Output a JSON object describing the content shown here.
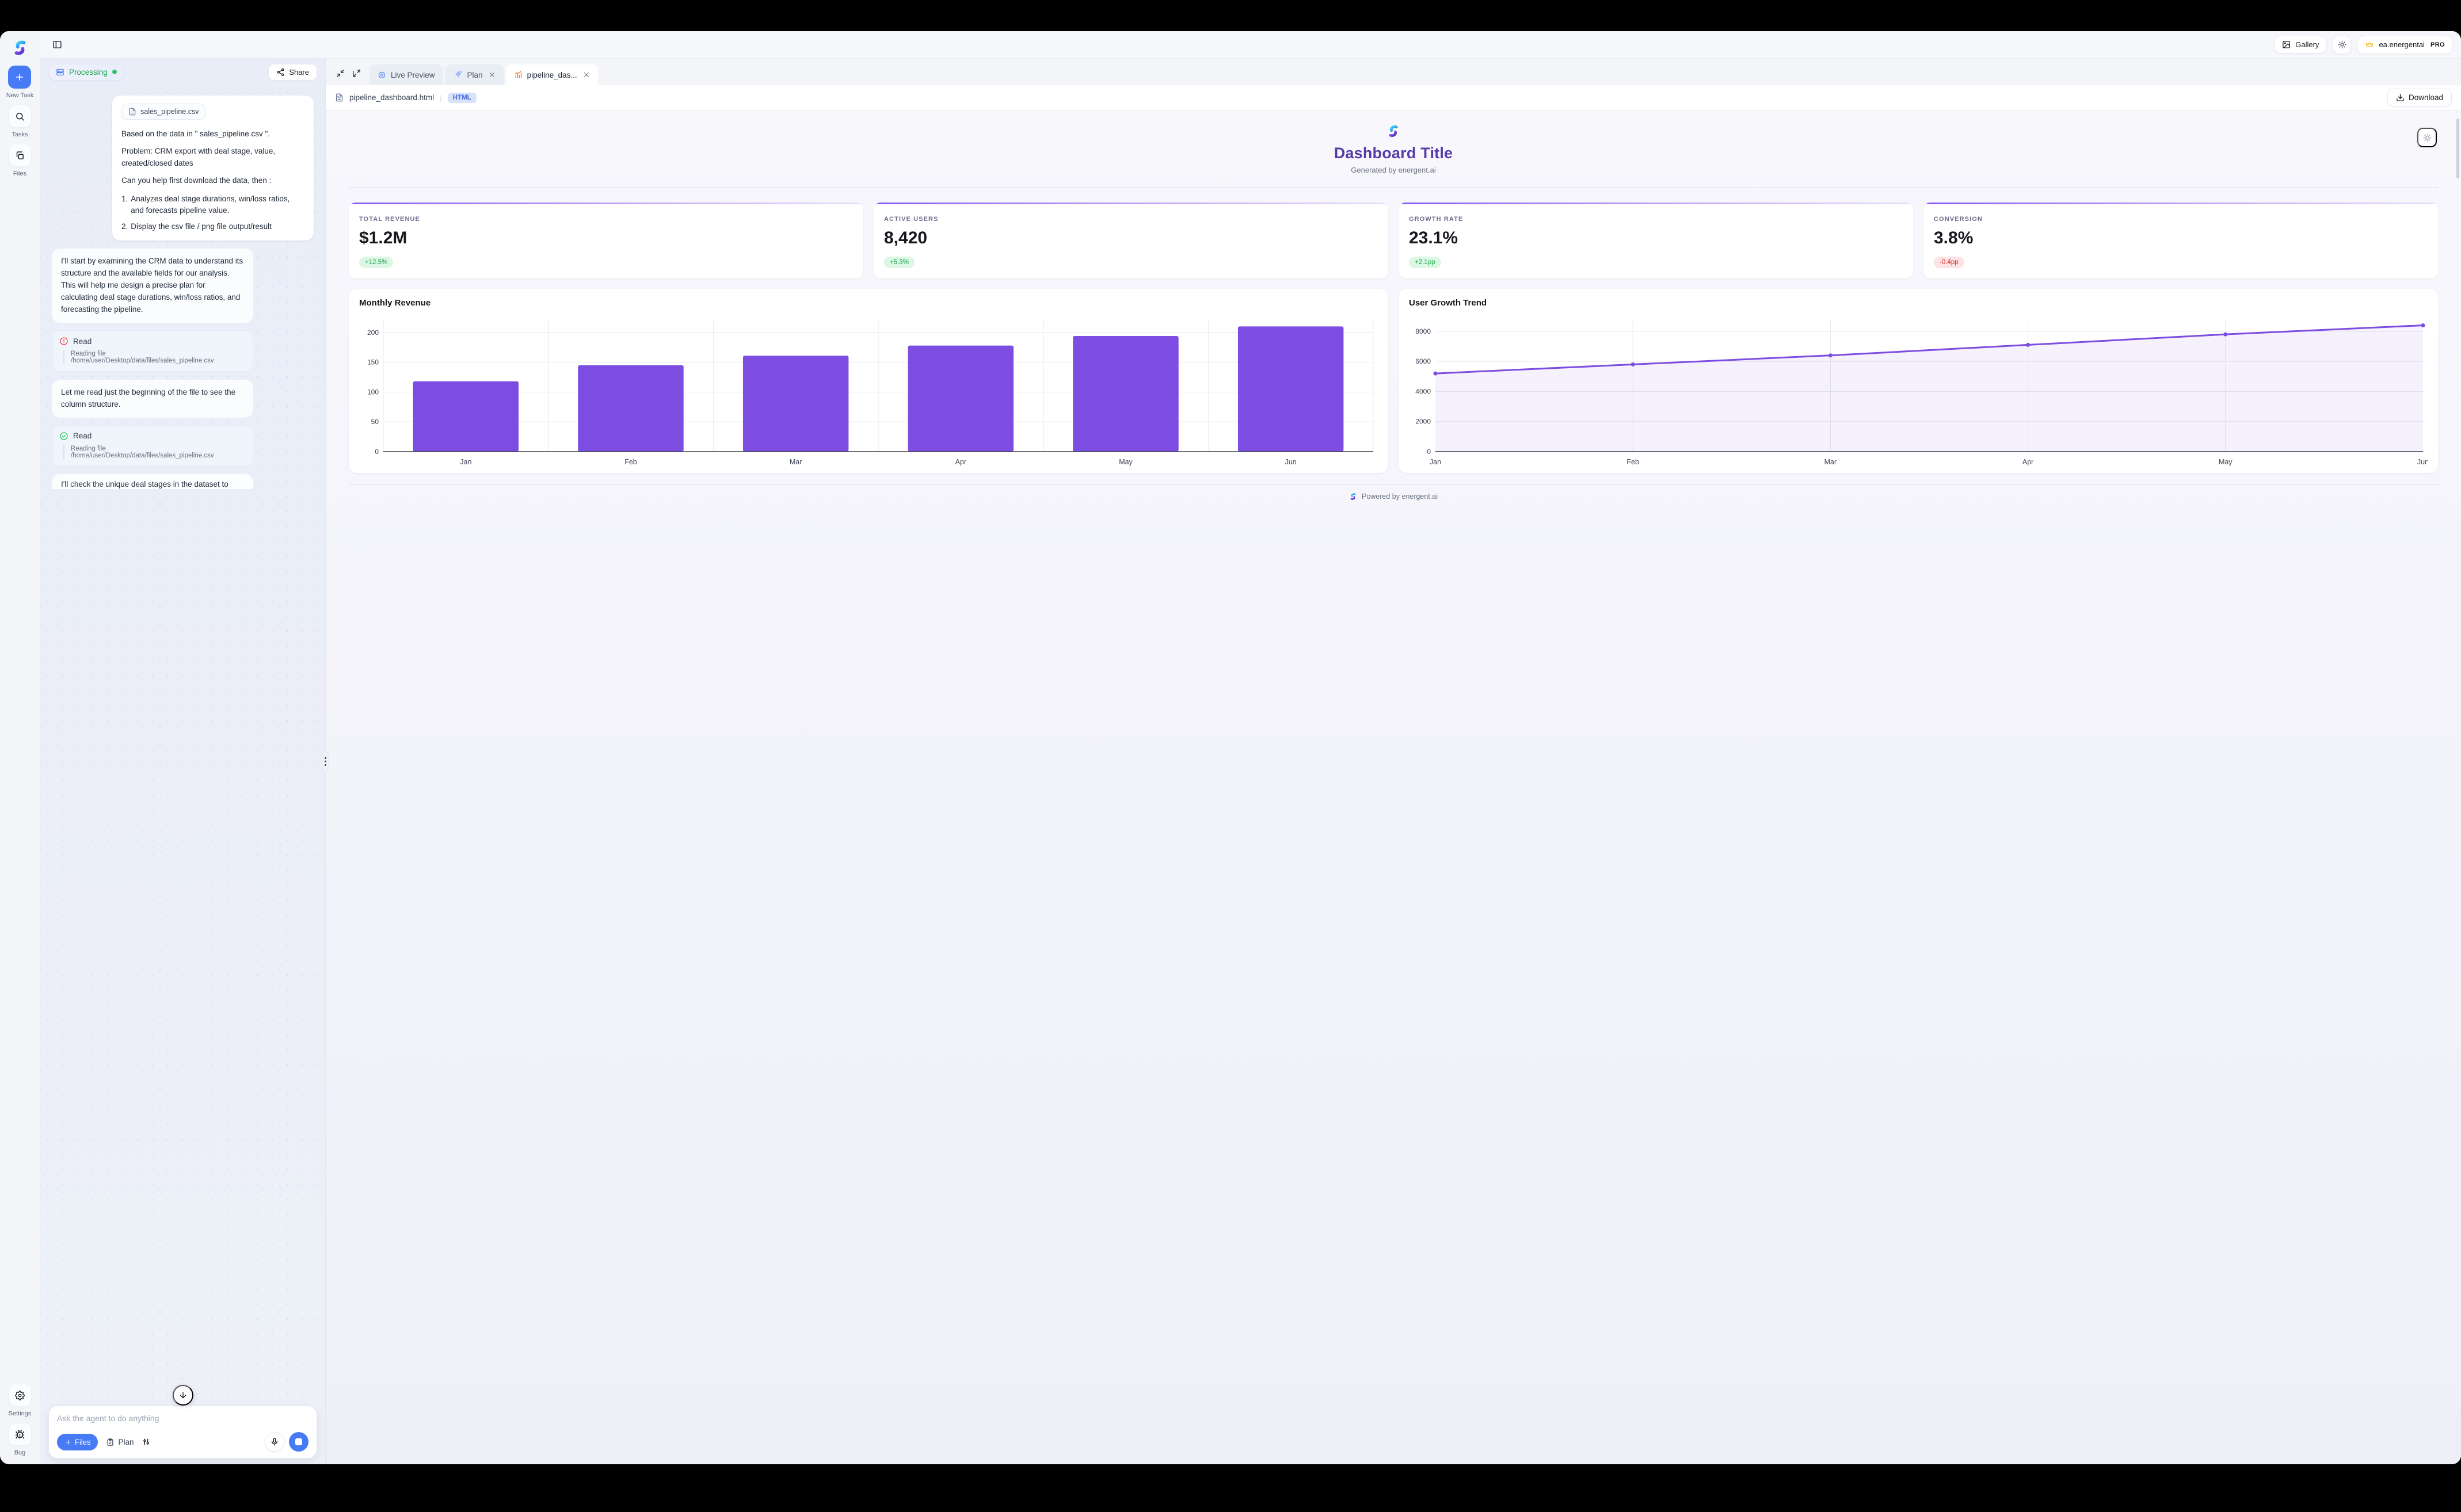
{
  "header": {
    "gallery_label": "Gallery",
    "account": "ea.energentai",
    "plan_badge": "PRO"
  },
  "sidebar": {
    "items": [
      {
        "label": "New Task"
      },
      {
        "label": "Tasks"
      },
      {
        "label": "Files"
      }
    ],
    "bottom": [
      {
        "label": "Settings"
      },
      {
        "label": "Bug"
      }
    ]
  },
  "chat": {
    "status_label": "Processing",
    "share_label": "Share",
    "user_message": {
      "file_chip": "sales_pipeline.csv",
      "p1": "Based on the data in \" sales_pipeline.csv \".",
      "p2": "Problem: CRM export with deal stage, value, created/closed dates",
      "p3": "Can you help first download the data, then :",
      "list": [
        {
          "num": "1.",
          "text": "Analyzes deal stage durations, win/loss ratios, and forecasts pipeline value."
        },
        {
          "num": "2.",
          "text": "Display the csv file / png file output/result"
        }
      ]
    },
    "assistant_message_1": "I'll start by examining the CRM data to understand its structure and the available fields for our analysis. This will help me design a precise plan for calculating deal stage durations, win/loss ratios, and forecasting the pipeline.",
    "tool_1": {
      "name": "Read",
      "status": "error",
      "detail": "Reading file /home/user/Desktop/data/files/sales_pipeline.csv"
    },
    "assistant_message_2": "Let me read just the beginning of the file to see the column structure.",
    "tool_2": {
      "name": "Read",
      "status": "success",
      "detail": "Reading file /home/user/Desktop/data/files/sales_pipeline.csv"
    },
    "assistant_message_3_clipped": "I'll check the unique deal stages in the dataset to",
    "composer": {
      "placeholder": "Ask the agent to do anything",
      "files_label": "Files",
      "plan_label": "Plan"
    }
  },
  "preview": {
    "tabs": [
      {
        "label": "Live Preview"
      },
      {
        "label": "Plan"
      },
      {
        "label": "pipeline_das..."
      }
    ],
    "file_bar": {
      "filename": "pipeline_dashboard.html",
      "badge": "HTML",
      "download_label": "Download"
    },
    "dashboard": {
      "title": "Dashboard Title",
      "subtitle": "Generated by energent.ai",
      "stats": [
        {
          "label": "TOTAL REVENUE",
          "value": "$1.2M",
          "delta": "+12.5%",
          "direction": "up"
        },
        {
          "label": "ACTIVE USERS",
          "value": "8,420",
          "delta": "+5.3%",
          "direction": "up"
        },
        {
          "label": "GROWTH RATE",
          "value": "23.1%",
          "delta": "+2.1pp",
          "direction": "up"
        },
        {
          "label": "CONVERSION",
          "value": "3.8%",
          "delta": "-0.4pp",
          "direction": "down"
        }
      ],
      "footer": "Powered by energent.ai"
    }
  },
  "chart_data": [
    {
      "type": "bar",
      "title": "Monthly Revenue",
      "categories": [
        "Jan",
        "Feb",
        "Mar",
        "Apr",
        "May",
        "Jun"
      ],
      "values": [
        118,
        145,
        161,
        178,
        194,
        210
      ],
      "yticks": [
        0,
        50,
        100,
        150,
        200
      ],
      "ylim": [
        0,
        222
      ],
      "grid": true,
      "color": "#7c4de0"
    },
    {
      "type": "area",
      "title": "User Growth Trend",
      "categories": [
        "Jan",
        "Feb",
        "Mar",
        "Apr",
        "May",
        "Jun"
      ],
      "values": [
        5200,
        5800,
        6400,
        7100,
        7800,
        8400
      ],
      "yticks": [
        0,
        2000,
        4000,
        6000,
        8000
      ],
      "ylim": [
        0,
        8800
      ],
      "grid": true,
      "color": "#7c4de0",
      "fill": "rgba(124,77,224,0.08)"
    }
  ],
  "colors": {
    "accent_purple": "#7c4de0",
    "success_green": "#16a34a",
    "error_red": "#dc2626",
    "primary_blue": "#477bf6",
    "tab_icon_orange": "#ef7220",
    "crown_gold": "#f0b418"
  },
  "icons": [
    "energent-logo",
    "panel-left-icon",
    "gallery-icon",
    "sun-icon",
    "crown-icon",
    "plus-icon",
    "search-icon",
    "copy-files-icon",
    "settings-gear-icon",
    "bug-icon",
    "server-icon",
    "status-dot",
    "share-icon",
    "minimize-icon",
    "maximize-icon",
    "live-preview-icon",
    "sparkles-icon",
    "bar-chart-icon",
    "close-icon",
    "file-text-icon",
    "csv-file-icon",
    "download-icon",
    "alert-circle-icon",
    "check-circle-icon",
    "arrow-down-icon",
    "clipboard-icon",
    "sliders-icon",
    "mic-icon",
    "stop-icon",
    "grip-handle",
    "preview-gear-icon"
  ]
}
